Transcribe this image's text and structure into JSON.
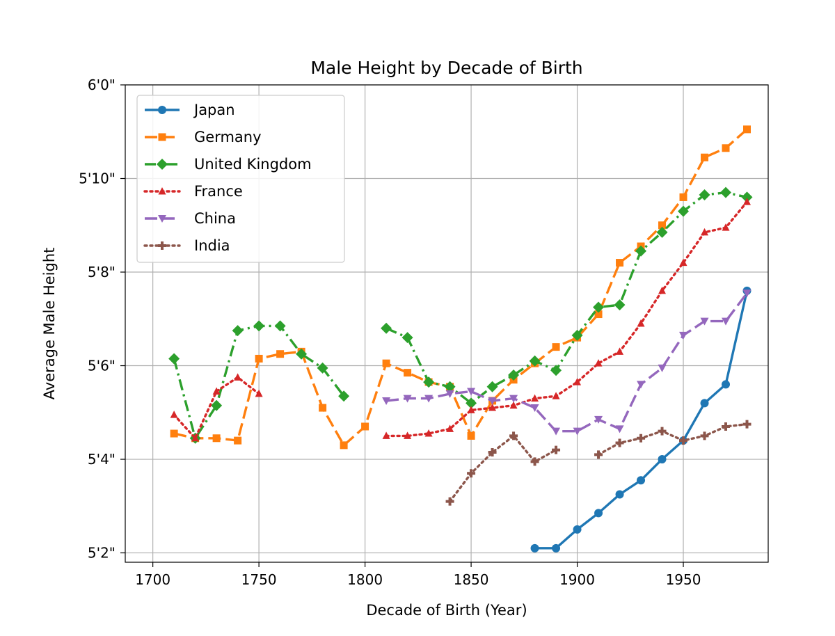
{
  "chart_data": {
    "type": "line",
    "title": "Male Height by Decade of Birth",
    "xlabel": "Decade of Birth (Year)",
    "ylabel": "Average Male Height",
    "xlim": [
      1687,
      1990
    ],
    "ylim": [
      61.8,
      72.0
    ],
    "x_ticks": [
      1700,
      1750,
      1800,
      1850,
      1900,
      1950
    ],
    "x_tick_labels": [
      "1700",
      "1750",
      "1800",
      "1850",
      "1900",
      "1950"
    ],
    "y_ticks": [
      62,
      64,
      66,
      68,
      70,
      72
    ],
    "y_tick_labels": [
      "5'2\"",
      "5'4\"",
      "5'6\"",
      "5'8\"",
      "5'10\"",
      "6'0\""
    ],
    "grid": true,
    "legend_position": "upper-left",
    "series": [
      {
        "name": "Japan",
        "color": "#1f77b4",
        "linestyle": "solid",
        "marker": "circle",
        "x": [
          1880,
          1890,
          1900,
          1910,
          1920,
          1930,
          1940,
          1950,
          1960,
          1970,
          1980
        ],
        "y": [
          62.1,
          62.1,
          62.5,
          62.85,
          63.25,
          63.55,
          64.0,
          64.4,
          65.2,
          65.6,
          67.6
        ]
      },
      {
        "name": "Germany",
        "color": "#ff7f0e",
        "linestyle": "dashed",
        "marker": "square",
        "x": [
          1710,
          1720,
          1730,
          1740,
          1750,
          1760,
          1770,
          1780,
          1790,
          1800,
          1810,
          1820,
          1830,
          1840,
          1850,
          1860,
          1870,
          1880,
          1890,
          1900,
          1910,
          1920,
          1930,
          1940,
          1950,
          1960,
          1970,
          1980
        ],
        "y": [
          64.55,
          64.45,
          64.45,
          64.4,
          66.15,
          66.25,
          66.3,
          65.1,
          64.3,
          64.7,
          66.05,
          65.85,
          65.65,
          65.55,
          64.5,
          65.25,
          65.7,
          66.05,
          66.4,
          66.6,
          67.1,
          68.2,
          68.55,
          69.0,
          69.6,
          70.45,
          70.65,
          71.05
        ]
      },
      {
        "name": "United Kingdom",
        "color": "#2ca02c",
        "linestyle": "dashdot",
        "marker": "diamond",
        "x": [
          1710,
          1720,
          1730,
          1740,
          1750,
          1760,
          1770,
          1780,
          1790,
          null,
          1810,
          1820,
          1830,
          1840,
          1850,
          1860,
          1870,
          1880,
          1890,
          1900,
          1910,
          1920,
          1930,
          1940,
          1950,
          1960,
          1970,
          1980
        ],
        "y": [
          66.15,
          64.45,
          65.15,
          66.75,
          66.85,
          66.85,
          66.25,
          65.95,
          65.35,
          null,
          66.8,
          66.6,
          65.65,
          65.55,
          65.2,
          65.55,
          65.8,
          66.1,
          65.9,
          66.65,
          67.25,
          67.3,
          68.45,
          68.85,
          69.3,
          69.65,
          69.7,
          69.6
        ]
      },
      {
        "name": "France",
        "color": "#d62728",
        "linestyle": "dotted",
        "marker": "triangle-up",
        "x": [
          1710,
          1720,
          1730,
          1740,
          1750,
          null,
          1810,
          1820,
          1830,
          1840,
          1850,
          1860,
          1870,
          1880,
          1890,
          1900,
          1910,
          1920,
          1930,
          1940,
          1950,
          1960,
          1970,
          1980
        ],
        "y": [
          64.95,
          64.45,
          65.45,
          65.75,
          65.4,
          null,
          64.5,
          64.5,
          64.55,
          64.65,
          65.05,
          65.1,
          65.15,
          65.3,
          65.35,
          65.65,
          66.05,
          66.3,
          66.9,
          67.6,
          68.2,
          68.85,
          68.95,
          69.5
        ]
      },
      {
        "name": "China",
        "color": "#9467bd",
        "linestyle": "dashed",
        "marker": "triangle-down",
        "x": [
          1810,
          1820,
          1830,
          1840,
          1850,
          1860,
          1870,
          1880,
          1890,
          1900,
          1910,
          1920,
          1930,
          1940,
          1950,
          1960,
          1970,
          1980
        ],
        "y": [
          65.25,
          65.3,
          65.3,
          65.4,
          65.45,
          65.25,
          65.3,
          65.1,
          64.6,
          64.6,
          64.85,
          64.65,
          65.6,
          65.95,
          66.65,
          66.95,
          66.95,
          67.55
        ]
      },
      {
        "name": "India",
        "color": "#8c564b",
        "linestyle": "dotted",
        "marker": "plus",
        "x": [
          1840,
          1850,
          1860,
          1870,
          1880,
          1890,
          null,
          1910,
          1920,
          1930,
          1940,
          1950,
          1960,
          1970,
          1980
        ],
        "y": [
          63.1,
          63.7,
          64.15,
          64.5,
          63.95,
          64.2,
          null,
          64.1,
          64.35,
          64.45,
          64.6,
          64.4,
          64.5,
          64.7,
          64.75
        ]
      }
    ]
  }
}
